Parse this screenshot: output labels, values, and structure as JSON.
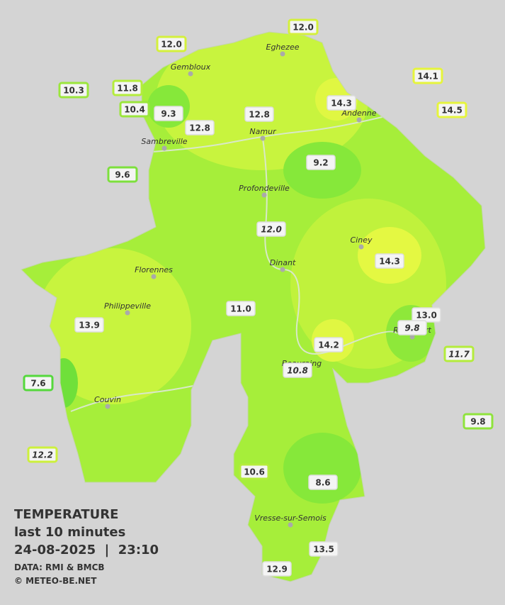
{
  "legend": {
    "title": "TEMPERATURE",
    "subtitle": "last 10 minutes",
    "datetime": "24-08-2025  |  23:10",
    "source": "DATA: RMI & BMCB",
    "copyright": "© METEO-BE.NET"
  },
  "cities": [
    "Eghezee",
    "Gembloux",
    "Andenne",
    "Namur",
    "Sambreville",
    "Profondeville",
    "Ciney",
    "Dinant",
    "Florennes",
    "Philippeville",
    "Rochefort",
    "Beauraing",
    "Couvin",
    "Vresse-sur-Semois"
  ],
  "stations": [
    {
      "value": "12.0",
      "color": "#d4f03c"
    },
    {
      "value": "12.0",
      "color": "#d4f03c"
    },
    {
      "value": "10.3",
      "color": "#9be63c"
    },
    {
      "value": "11.8",
      "color": "#b4ec3c"
    },
    {
      "value": "10.4",
      "color": "#9be63c"
    },
    {
      "value": "9.3",
      "color": "#dddddd"
    },
    {
      "value": "12.8",
      "color": "#dddddd"
    },
    {
      "value": "12.8",
      "color": "#dddddd"
    },
    {
      "value": "14.1",
      "color": "#e6f53c"
    },
    {
      "value": "14.3",
      "color": "#dddddd"
    },
    {
      "value": "14.5",
      "color": "#e6f53c"
    },
    {
      "value": "9.6",
      "color": "#7de03c"
    },
    {
      "value": "9.2",
      "color": "#dddddd"
    },
    {
      "value": "12.0",
      "color": "#dddddd",
      "italic": true
    },
    {
      "value": "14.3",
      "color": "#dddddd"
    },
    {
      "value": "11.0",
      "color": "#dddddd"
    },
    {
      "value": "13.0",
      "color": "#dddddd"
    },
    {
      "value": "9.8",
      "color": "#dddddd",
      "italic": true
    },
    {
      "value": "13.9",
      "color": "#dddddd"
    },
    {
      "value": "14.2",
      "color": "#dddddd"
    },
    {
      "value": "11.7",
      "color": "#b4ec3c",
      "italic": true
    },
    {
      "value": "10.8",
      "color": "#dddddd",
      "italic": true
    },
    {
      "value": "7.6",
      "color": "#55d83c"
    },
    {
      "value": "9.8",
      "color": "#8fe33c"
    },
    {
      "value": "12.2",
      "color": "#cdf03c",
      "italic": true
    },
    {
      "value": "10.6",
      "color": "#b4ec3c"
    },
    {
      "value": "8.6",
      "color": "#dddddd"
    },
    {
      "value": "13.5",
      "color": "#dddddd"
    },
    {
      "value": "12.9",
      "color": "#dddddd"
    }
  ]
}
